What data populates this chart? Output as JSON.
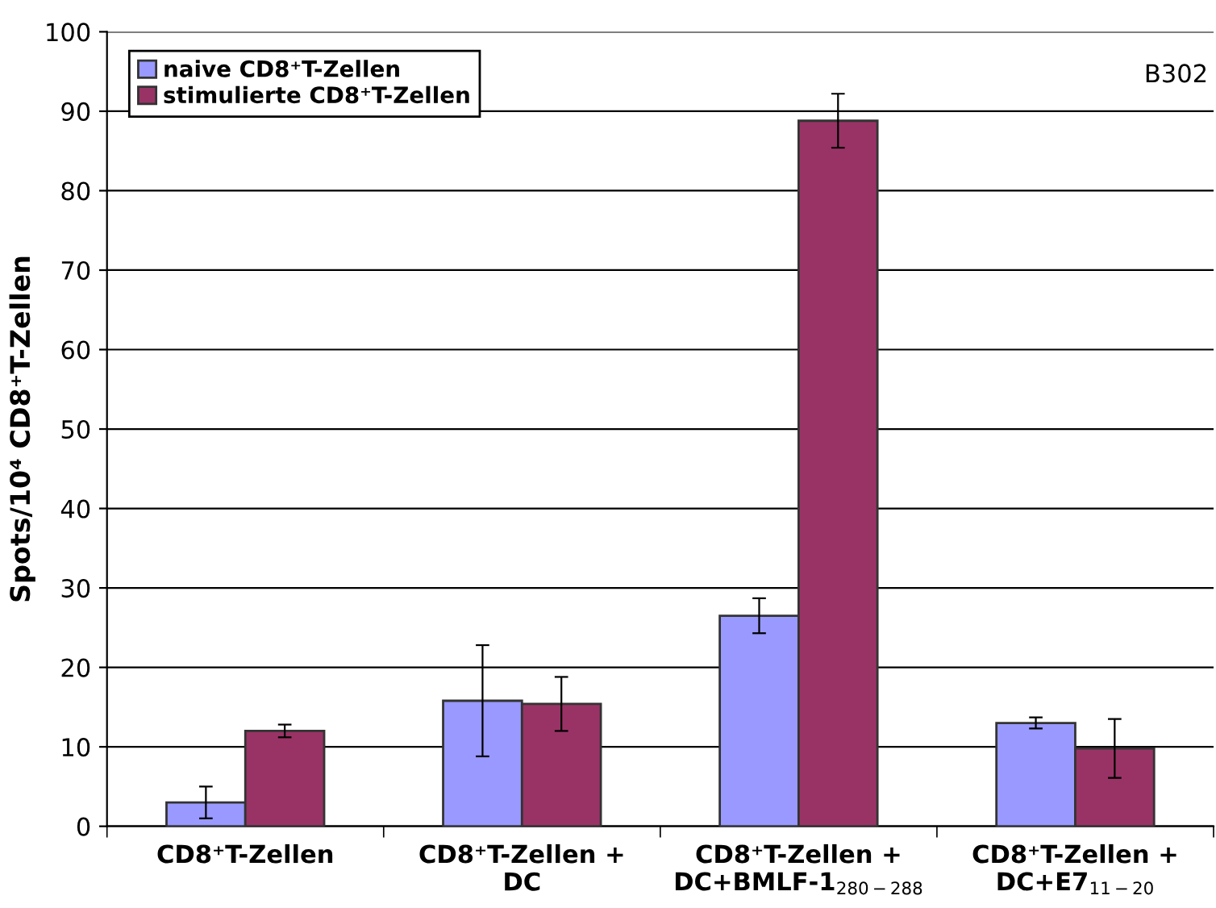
{
  "chart_data": {
    "type": "bar",
    "ylabel": "Spots/10⁴ CD8⁺T-Zellen",
    "categories": [
      "CD8⁺T-Zellen",
      "CD8⁺T-Zellen +\nDC",
      "CD8⁺T-Zellen +\nDC+BMLF-1$_{280−288}$",
      "CD8⁺T-Zellen +\nDC+E7$_{11−20}$"
    ],
    "series": [
      {
        "name": "naive CD8⁺T-Zellen",
        "color": "#9999ff",
        "values": [
          3,
          15.8,
          26.5,
          13
        ],
        "errors": [
          2,
          7,
          2.2,
          0.7
        ]
      },
      {
        "name": "stimulierte CD8⁺T-Zellen",
        "color": "#993366",
        "values": [
          12,
          15.4,
          88.8,
          9.8
        ],
        "errors": [
          0.8,
          3.4,
          3.4,
          3.7
        ]
      }
    ],
    "ylim": [
      0,
      100
    ],
    "yticks": [
      0,
      10,
      20,
      30,
      40,
      50,
      60,
      70,
      80,
      90,
      100
    ],
    "grid": "y",
    "legend": "top left",
    "annotations": [
      "B302"
    ]
  }
}
